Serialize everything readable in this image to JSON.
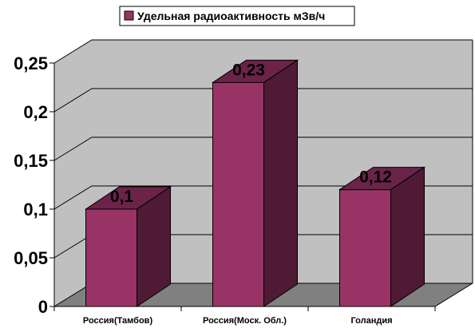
{
  "chart_data": {
    "type": "bar",
    "categories": [
      "Россия(Тамбов)",
      "Россия(Моск. Обл.)",
      "Голандия"
    ],
    "series": [
      {
        "name": "Удельная радиоактивность мЗв/ч",
        "values": [
          0.1,
          0.23,
          0.12
        ],
        "color": "#993366"
      }
    ],
    "data_labels": [
      "0,1",
      "0,23",
      "0,12"
    ],
    "y_ticks": [
      "0",
      "0,05",
      "0,1",
      "0,15",
      "0,2",
      "0,25"
    ],
    "ylim": [
      0,
      0.25
    ],
    "grid": true,
    "legend_position": "top-center",
    "style": "3d-column",
    "wall_color": "#c0c0c0",
    "floor_color": "#808080"
  }
}
